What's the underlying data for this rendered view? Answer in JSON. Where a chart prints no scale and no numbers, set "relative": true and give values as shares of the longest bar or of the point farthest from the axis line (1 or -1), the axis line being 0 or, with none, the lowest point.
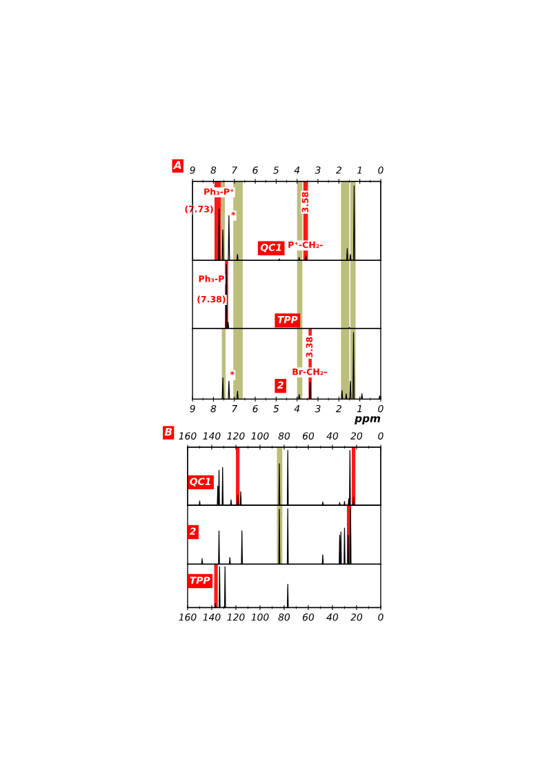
{
  "chart_data": [
    {
      "type": "line",
      "title": "QC1",
      "annotations": [
        "A",
        "Ph₃-P⁺",
        "(7.73)",
        {
          "text": "*",
          "x": 7.05,
          "y": 0.6
        },
        {
          "text": "3.58",
          "x": 3.58,
          "y": 0.78
        },
        {
          "text": "P⁺-CH₂-",
          "x": 3.6,
          "y": 0.2
        }
      ],
      "x": [
        9,
        7.76,
        7.73,
        7.7,
        7.58,
        7.55,
        7.52,
        7.29,
        7.26,
        7.23,
        6.88,
        6.85,
        6.82,
        4.88,
        4.85,
        4.82,
        3.93,
        3.9,
        3.87,
        3.61,
        3.58,
        3.55,
        1.63,
        1.6,
        1.57,
        1.48,
        1.45,
        1.42,
        1.3,
        1.27,
        1.24,
        0
      ],
      "series": [
        {
          "color": "#000000",
          "values": [
            0,
            0,
            0.69,
            0,
            0,
            0.41,
            0,
            0,
            0.6,
            0,
            0,
            0.08,
            0,
            0,
            0.02,
            0,
            0,
            0.04,
            0,
            0,
            0.06,
            0,
            0,
            0.16,
            0,
            0,
            0.08,
            0,
            0,
            1,
            0,
            0
          ]
        }
      ],
      "relative": true,
      "xlim": [
        9,
        0
      ],
      "x2lim": [
        9,
        0
      ],
      "x2ticks": [
        9,
        8,
        7,
        6,
        5,
        4,
        3,
        2,
        1,
        0
      ],
      "tick_labels": false,
      "bands": [
        {
          "axis": "x",
          "from": 7.95,
          "to": 7.65,
          "color": "#ff0000"
        },
        {
          "axis": "x",
          "from": 7.65,
          "to": 7.45,
          "color": "#b5b86e"
        },
        {
          "axis": "x",
          "from": 7.05,
          "to": 6.6,
          "color": "#b5b86e"
        },
        {
          "axis": "x",
          "from": 4.0,
          "to": 3.75,
          "color": "#b5b86e"
        },
        {
          "axis": "x",
          "from": 3.7,
          "to": 3.48,
          "color": "#ff0000"
        },
        {
          "axis": "x",
          "from": 1.9,
          "to": 1.5,
          "color": "#b5b86e"
        },
        {
          "axis": "x",
          "from": 1.45,
          "to": 1.2,
          "color": "#b5b86e"
        }
      ]
    },
    {
      "type": "line",
      "title": "TPP",
      "annotations": [
        "Ph₃-P",
        "(7.38)"
      ],
      "x": [
        9,
        7.41,
        7.38,
        7.35,
        7.33,
        7.3,
        7.27,
        1.53,
        1.5,
        1.47,
        0
      ],
      "series": [
        {
          "color": "#000000",
          "values": [
            0,
            0,
            1,
            0,
            0,
            0.1,
            0,
            0,
            0.02,
            0,
            0
          ]
        }
      ],
      "relative": true,
      "xlim": [
        9,
        0
      ],
      "tick_labels": false,
      "bands": [
        {
          "axis": "x",
          "from": 7.45,
          "to": 7.3,
          "color": "#ff0000"
        },
        {
          "axis": "x",
          "from": 7.05,
          "to": 6.6,
          "color": "#b5b86e"
        },
        {
          "axis": "x",
          "from": 4.0,
          "to": 3.75,
          "color": "#b5b86e"
        },
        {
          "axis": "x",
          "from": 1.9,
          "to": 1.5,
          "color": "#b5b86e"
        },
        {
          "axis": "x",
          "from": 1.45,
          "to": 1.2,
          "color": "#b5b86e"
        }
      ]
    },
    {
      "type": "line",
      "title": "2",
      "xlabel": "ppm",
      "annotations": [
        {
          "text": "*",
          "x": 7.1,
          "y": 0.36
        },
        {
          "text": "3.38",
          "x": 3.38,
          "y": 0.78
        },
        {
          "text": "Br-CH₂-",
          "x": 3.4,
          "y": 0.4
        }
      ],
      "x": [
        9,
        7.58,
        7.55,
        7.52,
        7.29,
        7.26,
        7.23,
        6.88,
        6.85,
        6.82,
        3.93,
        3.9,
        3.87,
        3.41,
        3.38,
        3.35,
        1.88,
        1.85,
        1.82,
        1.68,
        1.65,
        1.62,
        1.48,
        1.45,
        1.42,
        1.33,
        1.3,
        1.27,
        0.93,
        0.9,
        0.87,
        0.08,
        0.05,
        0.02,
        0
      ],
      "series": [
        {
          "color": "#000000",
          "values": [
            0,
            0,
            0.32,
            0,
            0,
            0.27,
            0,
            0,
            0.12,
            0,
            0,
            0.07,
            0,
            0,
            0.26,
            0,
            0,
            0.13,
            0,
            0,
            0.08,
            0,
            0,
            0.27,
            0,
            0,
            1,
            0,
            0,
            0.08,
            0,
            0,
            0.05,
            0,
            0
          ]
        }
      ],
      "relative": true,
      "xlim": [
        9,
        0
      ],
      "xticks": [
        9,
        8,
        7,
        6,
        5,
        4,
        3,
        2,
        1,
        0
      ],
      "tick_labels": "x",
      "bands": [
        {
          "axis": "x",
          "from": 7.6,
          "to": 7.42,
          "color": "#b5b86e"
        },
        {
          "axis": "x",
          "from": 7.05,
          "to": 6.6,
          "color": "#b5b86e"
        },
        {
          "axis": "x",
          "from": 4.0,
          "to": 3.75,
          "color": "#b5b86e"
        },
        {
          "axis": "x",
          "from": 3.45,
          "to": 3.3,
          "color": "#ff0000"
        },
        {
          "axis": "x",
          "from": 1.9,
          "to": 1.5,
          "color": "#b5b86e"
        },
        {
          "axis": "x",
          "from": 1.45,
          "to": 1.2,
          "color": "#b5b86e"
        }
      ]
    },
    {
      "type": "line",
      "title": "QC1",
      "annotations": [
        "B"
      ],
      "x": [
        160,
        150.4,
        150,
        149.6,
        135.4,
        135,
        134.6,
        134.4,
        134,
        133.6,
        131.4,
        131,
        130.6,
        124.4,
        124,
        123.6,
        118.9,
        118.5,
        118.1,
        116.4,
        116,
        115.6,
        84.4,
        84,
        83.6,
        77.4,
        77,
        76.6,
        48.4,
        48,
        47.6,
        34.4,
        34,
        33.6,
        30.4,
        30,
        29.6,
        26.9,
        26.5,
        26.1,
        25.9,
        25.5,
        25.1,
        22.9,
        22.5,
        22.1,
        0
      ],
      "series": [
        {
          "color": "#000000",
          "values": [
            0,
            0,
            0.08,
            0,
            0,
            0.35,
            0,
            0,
            0.64,
            0,
            0,
            0.69,
            0,
            0,
            0.1,
            0,
            0,
            0.18,
            0,
            0,
            0.25,
            0,
            0,
            0.76,
            0,
            0,
            1,
            0,
            0,
            0.06,
            0,
            0,
            0.05,
            0,
            0,
            0.07,
            0,
            0,
            0.12,
            0,
            0,
            1,
            0,
            0,
            0.15,
            0,
            0
          ]
        }
      ],
      "relative": true,
      "xlim": [
        160,
        0
      ],
      "x2lim": [
        160,
        0
      ],
      "x2ticks": [
        160,
        140,
        120,
        100,
        80,
        60,
        40,
        20,
        0
      ],
      "tick_labels": false,
      "bands": [
        {
          "axis": "x",
          "from": 120,
          "to": 117,
          "color": "#ff0000"
        },
        {
          "axis": "x",
          "from": 86,
          "to": 81.5,
          "color": "#b5b86e"
        },
        {
          "axis": "x",
          "from": 24,
          "to": 21,
          "color": "#ff0000"
        }
      ]
    },
    {
      "type": "line",
      "title": "2",
      "x": [
        160,
        148.4,
        148,
        147.6,
        134.4,
        134,
        133.6,
        125.4,
        125,
        124.6,
        115.4,
        115,
        114.6,
        84.4,
        84,
        83.6,
        77.4,
        77,
        76.6,
        48.4,
        48,
        47.6,
        34.4,
        34,
        33.6,
        33.4,
        33,
        32.6,
        30.4,
        30,
        29.6,
        27.4,
        27,
        26.6,
        25.4,
        25,
        24.6,
        0
      ],
      "series": [
        {
          "color": "#000000",
          "values": [
            0,
            0,
            0.1,
            0,
            0,
            0.6,
            0,
            0,
            0.12,
            0,
            0,
            0.6,
            0,
            0,
            0.99,
            0,
            0,
            1,
            0,
            0,
            0.17,
            0,
            0,
            0.52,
            0,
            0,
            0.58,
            0,
            0,
            0.65,
            0,
            0,
            0.52,
            0,
            0,
            1,
            0,
            0
          ]
        }
      ],
      "relative": true,
      "xlim": [
        160,
        0
      ],
      "tick_labels": false,
      "bands": [
        {
          "axis": "x",
          "from": 86,
          "to": 81.5,
          "color": "#b5b86e"
        },
        {
          "axis": "x",
          "from": 28,
          "to": 24.5,
          "color": "#ff0000"
        }
      ]
    },
    {
      "type": "line",
      "title": "TPP",
      "x": [
        160,
        137.4,
        137,
        136.6,
        133.9,
        133.5,
        133.1,
        129.4,
        129,
        128.6,
        77.4,
        77,
        76.6,
        0
      ],
      "series": [
        {
          "color": "#000000",
          "values": [
            0,
            0,
            0.1,
            0,
            0,
            1,
            0,
            0,
            1,
            0,
            0,
            0.57,
            0,
            0
          ]
        }
      ],
      "relative": true,
      "xlim": [
        160,
        0
      ],
      "xticks": [
        160,
        140,
        120,
        100,
        80,
        60,
        40,
        20,
        0
      ],
      "tick_labels": "x",
      "bands": [
        {
          "axis": "x",
          "from": 138,
          "to": 135,
          "color": "#ff0000"
        }
      ]
    }
  ]
}
